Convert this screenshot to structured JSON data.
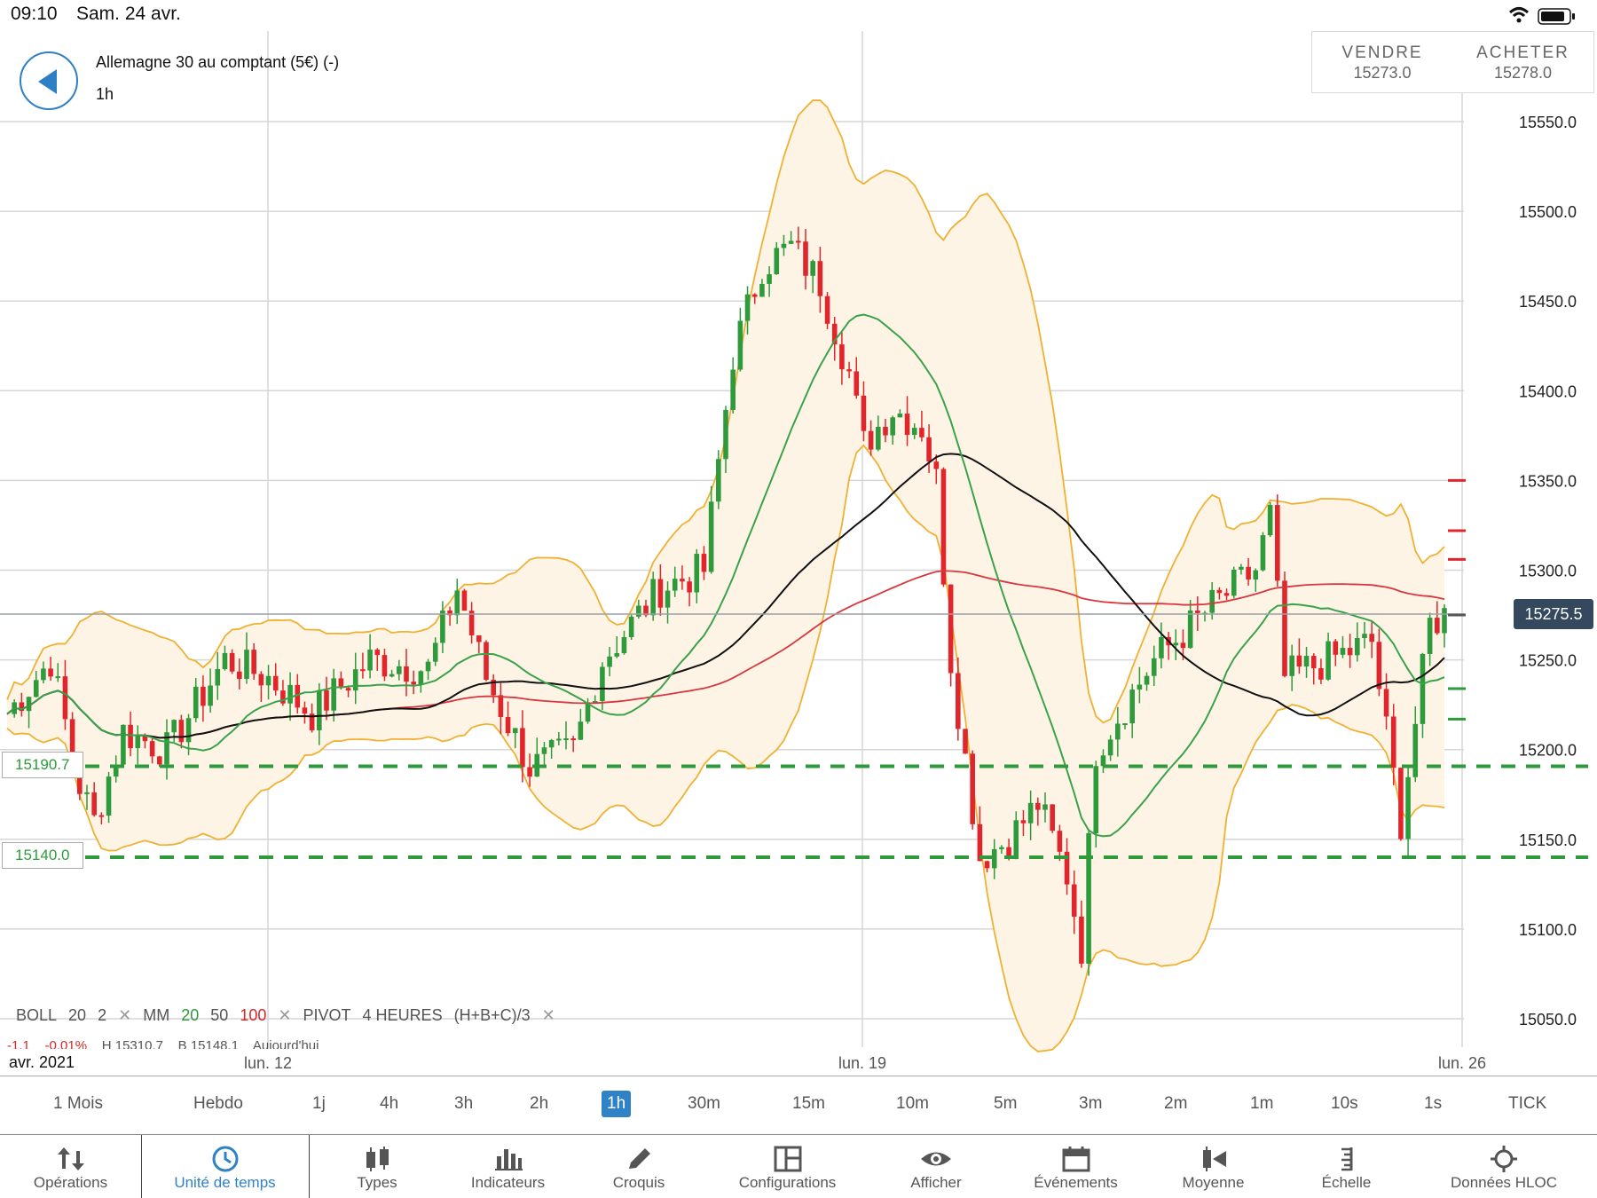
{
  "status_bar": {
    "time": "09:10",
    "date": "Sam. 24 avr."
  },
  "header": {
    "instrument": "Allemagne 30 au comptant (5€) (-)",
    "timeframe": "1h",
    "sell": {
      "label": "VENDRE",
      "price": "15273.0"
    },
    "buy": {
      "label": "ACHETER",
      "price": "15278.0"
    }
  },
  "chart_data": {
    "type": "candlestick",
    "y_ticks": [
      "15550.0",
      "15500.0",
      "15450.0",
      "15400.0",
      "15350.0",
      "15300.0",
      "15250.0",
      "15200.0",
      "15150.0",
      "15100.0",
      "15050.0"
    ],
    "ylim": [
      15025,
      15575
    ],
    "x_ticks": [
      "lun. 12",
      "lun. 19",
      "lun. 26"
    ],
    "x_start_label": "avr. 2021",
    "current_price": "15275.5",
    "support_levels": [
      "15190.7",
      "15140.0"
    ],
    "indicators": {
      "boll": {
        "name": "BOLL",
        "period": "20",
        "dev": "2"
      },
      "mm": {
        "name": "MM",
        "periods": [
          "20",
          "50",
          "100"
        ]
      },
      "pivot": {
        "name": "PIVOT",
        "period": "4 HEURES",
        "formula": "(H+B+C)/3"
      }
    },
    "stats": {
      "change": "-1.1",
      "change_pct": "-0.01%",
      "high": "H 15310.7",
      "low": "B 15148.1",
      "today": "Aujourd'hui"
    },
    "grid": true,
    "colors": {
      "up": "#2e9a3c",
      "down": "#e0262c",
      "boll": "#f0b132",
      "mm20": "#3aa34a",
      "mm50": "#111111",
      "mm100": "#d9363e"
    }
  },
  "timeframes": [
    "1 Mois",
    "Hebdo",
    "1j",
    "4h",
    "3h",
    "2h",
    "1h",
    "30m",
    "15m",
    "10m",
    "5m",
    "3m",
    "2m",
    "1m",
    "10s",
    "1s",
    "TICK"
  ],
  "active_timeframe": "1h",
  "toolbar": {
    "operations": "Opérations",
    "timeunit": "Unité de temps",
    "types": "Types",
    "indicators": "Indicateurs",
    "sketch": "Croquis",
    "configurations": "Configurations",
    "display": "Afficher",
    "events": "Événements",
    "average": "Moyenne",
    "scale": "Échelle",
    "hloc": "Données HLOC"
  }
}
